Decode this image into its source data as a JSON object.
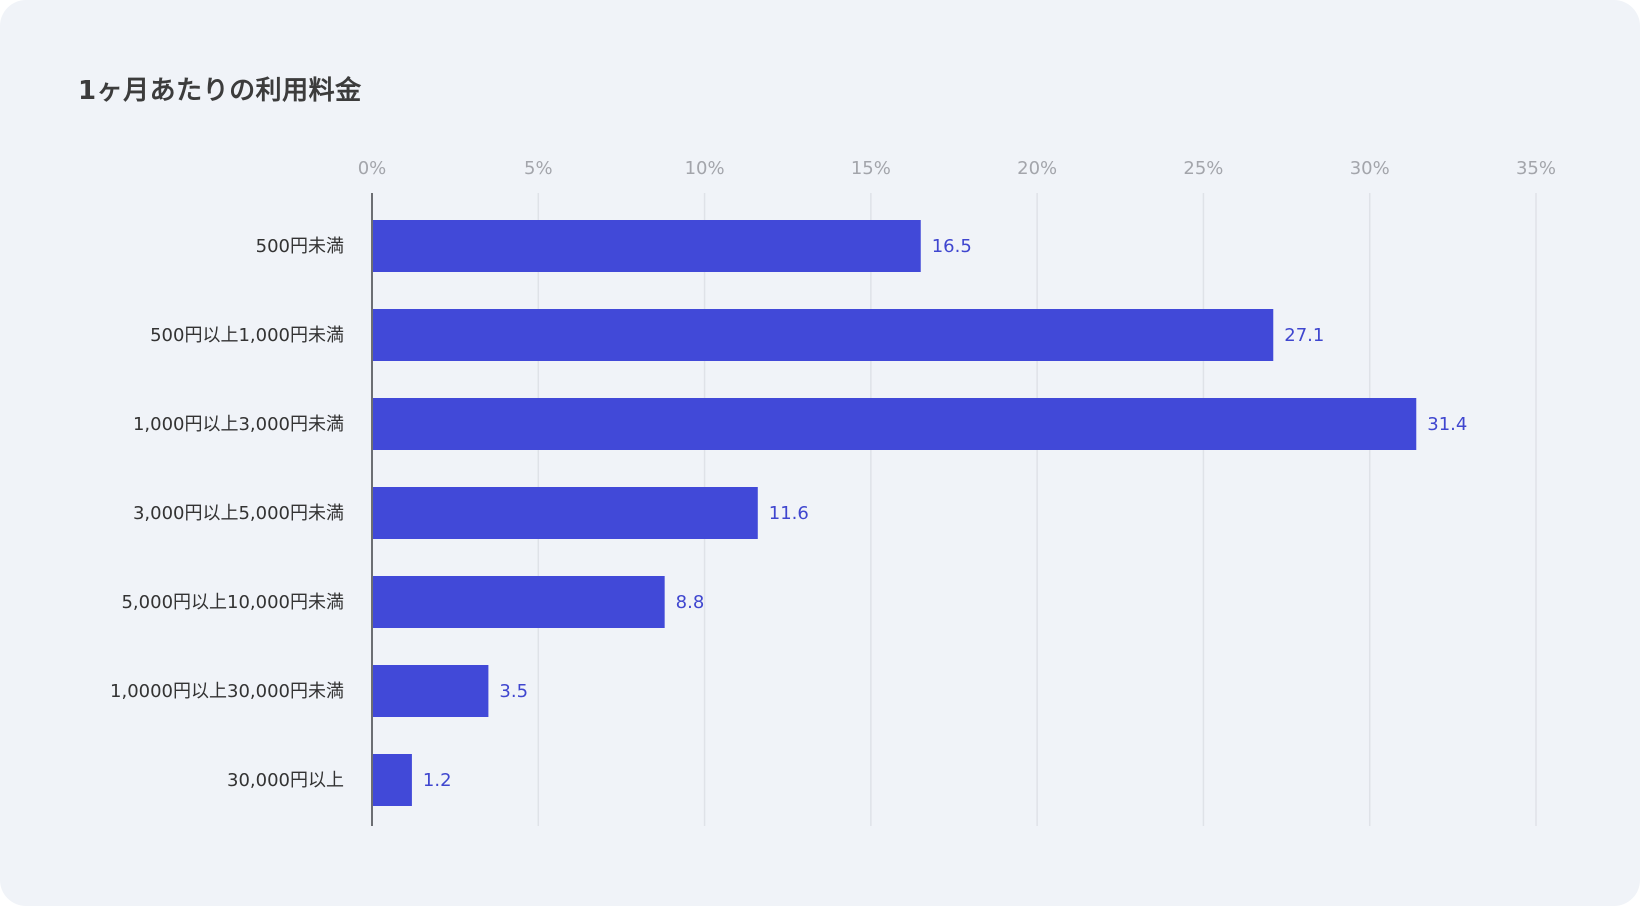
{
  "chart_data": {
    "type": "bar",
    "orientation": "horizontal",
    "title": "1ヶ月あたりの利用料金",
    "categories": [
      "500円未満",
      "500円以上1,000円未満",
      "1,000円以上3,000円未満",
      "3,000円以上5,000円未満",
      "5,000円以上10,000円未満",
      "1,0000円以上30,000円未満",
      "30,000円以上"
    ],
    "values": [
      16.5,
      27.1,
      31.4,
      11.6,
      8.8,
      3.5,
      1.2
    ],
    "value_labels": [
      "16.5",
      "27.1",
      "31.4",
      "11.6",
      "8.8",
      "3.5",
      "1.2"
    ],
    "xlim": [
      0,
      35
    ],
    "x_ticks": [
      0,
      5,
      10,
      15,
      20,
      25,
      30,
      35
    ],
    "x_tick_labels": [
      "0%",
      "5%",
      "10%",
      "15%",
      "20%",
      "25%",
      "30%",
      "35%"
    ],
    "x_axis_position": "top",
    "grid": true,
    "legend": "none",
    "colors": {
      "bar": "#4149d8",
      "value_label": "#3f46cf",
      "grid": "#dfe2e8",
      "axis": "#6c6e73",
      "background": "#f0f3f8"
    }
  }
}
